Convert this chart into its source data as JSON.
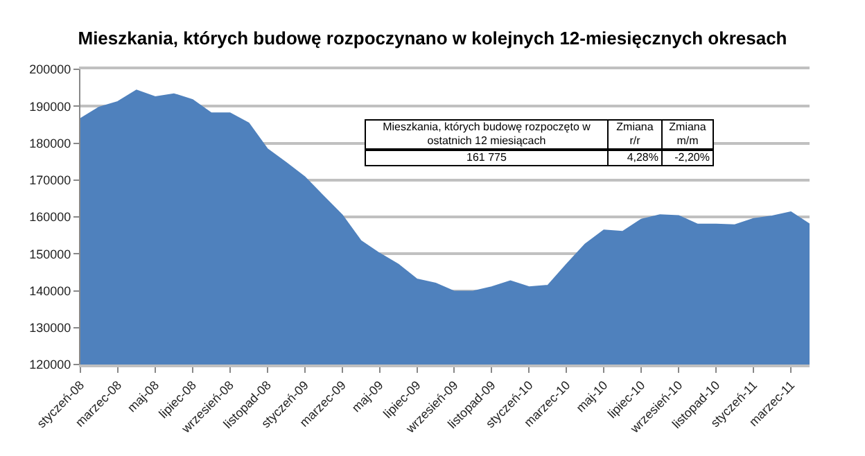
{
  "chart_data": {
    "type": "area",
    "title": "Mieszkania, których budowę rozpoczynano w kolejnych 12-miesięcznych okresach",
    "categories": [
      "styczeń-08",
      null,
      "marzec-08",
      null,
      "maj-08",
      null,
      "lipiec-08",
      null,
      "wrzesień-08",
      null,
      "listopad-08",
      null,
      "styczeń-09",
      null,
      "marzec-09",
      null,
      "maj-09",
      null,
      "lipiec-09",
      null,
      "wrzesień-09",
      null,
      "listopad-09",
      null,
      "styczeń-10",
      null,
      "marzec-10",
      null,
      "maj-10",
      null,
      "lipiec-10",
      null,
      "wrzesień-10",
      null,
      "listopad-10",
      null,
      "styczeń-11",
      null,
      "marzec-11",
      null
    ],
    "series": [
      {
        "color": "#4f81bd",
        "values": [
          186600,
          189700,
          191200,
          194300,
          192500,
          193300,
          191700,
          188100,
          188100,
          185400,
          178400,
          174700,
          170800,
          165600,
          160500,
          153500,
          150100,
          147100,
          143100,
          142000,
          139800,
          139800,
          141000,
          142600,
          141000,
          141400,
          147100,
          152600,
          156400,
          156000,
          159300,
          160500,
          160300,
          158000,
          158000,
          157800,
          159500,
          160200,
          161300,
          158000
        ]
      }
    ],
    "ylim": [
      120000,
      200000
    ],
    "yticks": [
      120000,
      130000,
      140000,
      150000,
      160000,
      170000,
      180000,
      190000,
      200000
    ],
    "grid": "y",
    "annotations": [
      "Mieszkania, których budowę rozpoczęto w ostatnich 12 miesiącach",
      "Zmiana r/r",
      "Zmiana m/m",
      "161 775",
      "4,28%",
      "-2,20%"
    ]
  }
}
